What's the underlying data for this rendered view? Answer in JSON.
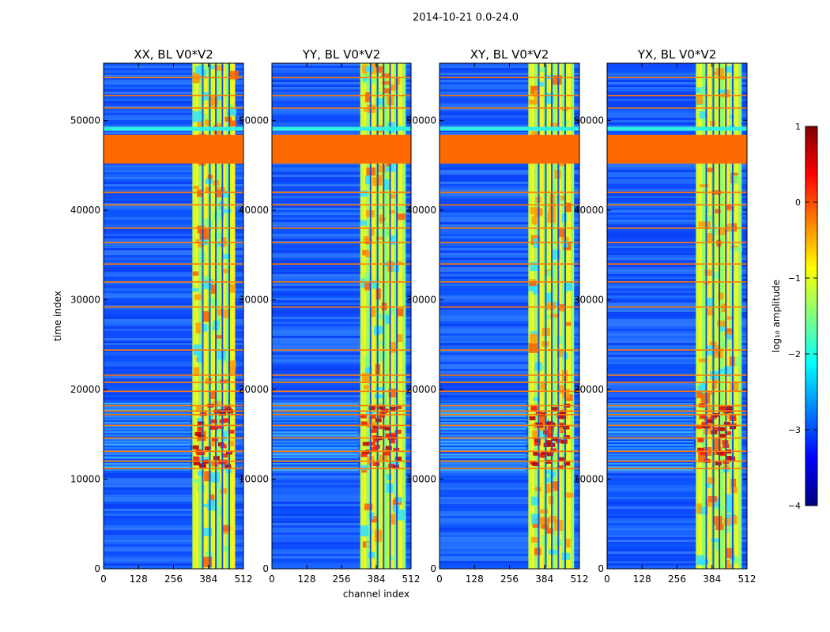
{
  "suptitle": "2014-10-21 0.0-24.0",
  "chart_data": {
    "type": "heatmap",
    "xlabel": "channel index",
    "ylabel": "time index",
    "xlim": [
      0,
      512
    ],
    "ylim": [
      0,
      56400
    ],
    "xticks": [
      "0",
      "128",
      "256",
      "384",
      "512"
    ],
    "xtick_values": [
      0,
      128,
      256,
      384,
      512
    ],
    "yticks": [
      "0",
      "10000",
      "20000",
      "30000",
      "40000",
      "50000"
    ],
    "ytick_values": [
      0,
      10000,
      20000,
      30000,
      40000,
      50000
    ],
    "panels": [
      {
        "title": "XX, BL V0*V2"
      },
      {
        "title": "YY, BL V0*V2"
      },
      {
        "title": "XY, BL V0*V2"
      },
      {
        "title": "YX, BL V0*V2"
      }
    ],
    "colorbar": {
      "label": "log₁₀ amplitude",
      "range": [
        -4,
        1
      ],
      "ticks": [
        "1",
        "0",
        "−1",
        "−2",
        "−3",
        "−4"
      ],
      "tick_values": [
        1,
        0,
        -1,
        -2,
        -3,
        -4
      ]
    },
    "flagged_time_block": [
      45200,
      48400
    ],
    "noisy_channel_band": [
      325,
      480
    ],
    "noisy_channel_gaps": [
      360,
      386,
      408,
      432,
      457
    ],
    "flagged_time_rows": [
      11200,
      12000,
      13100,
      14600,
      16000,
      17200,
      17600,
      18200,
      19800,
      20800,
      21600,
      24400,
      29200,
      32000,
      34000,
      36400,
      38000,
      40600,
      42000,
      49100,
      51400,
      52800,
      54800
    ],
    "rfi_burst_band": [
      11000,
      18500
    ],
    "colormap": [
      "#00007f",
      "#0000ff",
      "#007fff",
      "#00ffff",
      "#7fff7f",
      "#ffff00",
      "#ff7f00",
      "#ff0000",
      "#7f0000"
    ]
  }
}
